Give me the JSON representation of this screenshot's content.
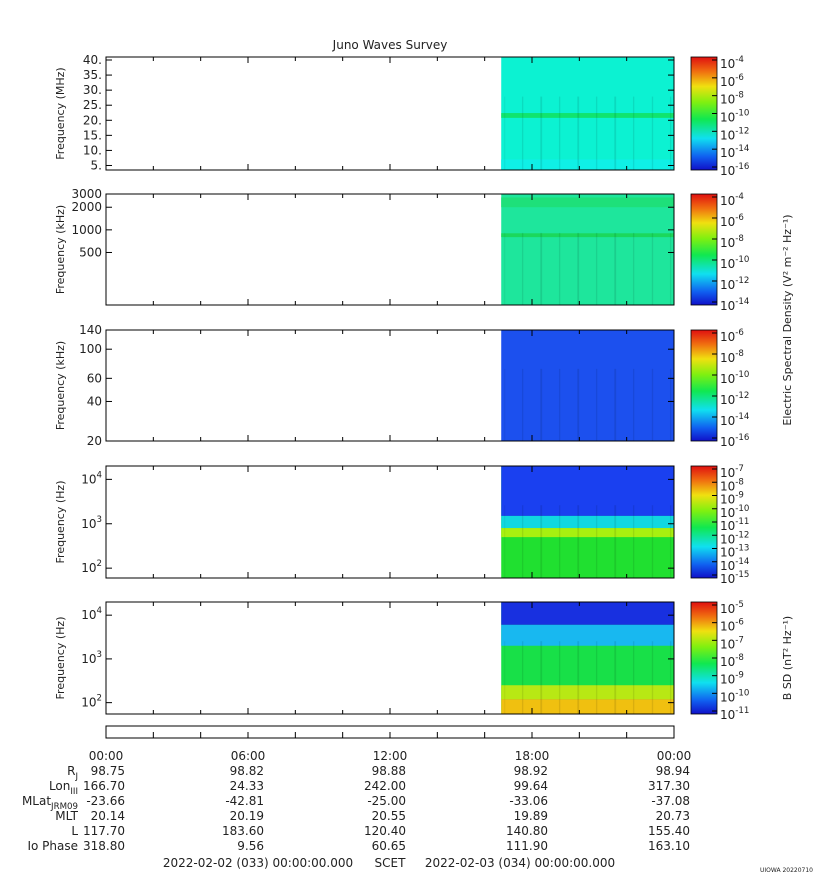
{
  "title": "Juno Waves Survey",
  "stamp": "UIOWA 20220710",
  "chart_data": [
    {
      "type": "heatmap",
      "ylabel": "Frequency (MHz)",
      "yscale": "linear",
      "ylim": [
        3.5,
        41
      ],
      "yticks": [
        {
          "label": "5.",
          "v": 5
        },
        {
          "label": "10.",
          "v": 10
        },
        {
          "label": "15.",
          "v": 15
        },
        {
          "label": "20.",
          "v": 20
        },
        {
          "label": "25.",
          "v": 25
        },
        {
          "label": "30.",
          "v": 30
        },
        {
          "label": "35.",
          "v": 35
        },
        {
          "label": "40.",
          "v": 40
        }
      ],
      "data_start_hour": 16.7,
      "base_color": "#0cf2d2",
      "bands": [
        {
          "from": 20.8,
          "to": 22.4,
          "color": "#10e46e"
        },
        {
          "from": 3.5,
          "to": 7,
          "color": "#0ff0e6"
        }
      ],
      "colorbar": {
        "unit": "",
        "ticks": [
          "-4",
          "-6",
          "-8",
          "-10",
          "-12",
          "-14",
          "-16"
        ]
      }
    },
    {
      "type": "heatmap",
      "ylabel": "Frequency (kHz)",
      "yscale": "log",
      "ylim": [
        100,
        3000
      ],
      "yticks": [
        {
          "label": "3000",
          "v": 3000
        },
        {
          "label": "2000",
          "v": 2000
        },
        {
          "label": "1000",
          "v": 1000
        },
        {
          "label": "500",
          "v": 500
        }
      ],
      "data_start_hour": 16.7,
      "base_color": "#1ee69c",
      "bands": [
        {
          "from": 2000,
          "to": 2700,
          "color": "#1ee07a"
        },
        {
          "from": 800,
          "to": 900,
          "color": "#1bd85c"
        }
      ],
      "colorbar": {
        "unit": "Electric Spectral Density (V² m⁻² Hz⁻¹)",
        "ticks": [
          "-4",
          "-6",
          "-8",
          "-10",
          "-12",
          "-14"
        ]
      }
    },
    {
      "type": "heatmap",
      "ylabel": "Frequency (kHz)",
      "yscale": "log",
      "ylim": [
        20,
        140
      ],
      "yticks": [
        {
          "label": "140",
          "v": 140
        },
        {
          "label": "100",
          "v": 100
        },
        {
          "label": "60",
          "v": 60
        },
        {
          "label": "40",
          "v": 40
        },
        {
          "label": "20",
          "v": 20
        }
      ],
      "data_start_hour": 16.7,
      "base_color": "#1c50ee",
      "bands": [],
      "colorbar": {
        "unit": "",
        "ticks": [
          "-6",
          "-8",
          "-10",
          "-12",
          "-14",
          "-16"
        ]
      }
    },
    {
      "type": "heatmap",
      "ylabel": "Frequency (Hz)",
      "yscale": "log",
      "ylim": [
        60,
        20000
      ],
      "yticks": [
        {
          "label": "10^4",
          "v": 10000
        },
        {
          "label": "10^3",
          "v": 1000
        },
        {
          "label": "10^2",
          "v": 100
        }
      ],
      "data_start_hour": 16.7,
      "base_color": "#20e030",
      "bands": [
        {
          "from": 1500,
          "to": 20000,
          "color": "#1a40f0"
        },
        {
          "from": 800,
          "to": 1500,
          "color": "#10d8e0"
        },
        {
          "from": 500,
          "to": 800,
          "color": "#a8f010"
        }
      ],
      "colorbar": {
        "unit": "",
        "ticks": [
          "-7",
          "-8",
          "-9",
          "-10",
          "-11",
          "-12",
          "-13",
          "-14",
          "-15"
        ]
      }
    },
    {
      "type": "heatmap",
      "ylabel": "Frequency (Hz)",
      "yscale": "log",
      "ylim": [
        55,
        20000
      ],
      "yticks": [
        {
          "label": "10^4",
          "v": 10000
        },
        {
          "label": "10^3",
          "v": 1000
        },
        {
          "label": "10^2",
          "v": 100
        }
      ],
      "data_start_hour": 16.7,
      "base_color": "#18e048",
      "bands": [
        {
          "from": 6000,
          "to": 20000,
          "color": "#1830e0"
        },
        {
          "from": 2000,
          "to": 6000,
          "color": "#18b8f0"
        },
        {
          "from": 120,
          "to": 250,
          "color": "#b8e814"
        },
        {
          "from": 55,
          "to": 120,
          "color": "#f0c010"
        }
      ],
      "colorbar": {
        "unit": "B SD (nT² Hz⁻¹)",
        "ticks": [
          "-5",
          "-6",
          "-7",
          "-8",
          "-9",
          "-10",
          "-11"
        ]
      }
    }
  ],
  "time_axis": {
    "ticks": [
      "00:00",
      "06:00",
      "12:00",
      "18:00",
      "00:00"
    ],
    "rows": [
      {
        "label": "R_J",
        "values": [
          "98.75",
          "98.82",
          "98.88",
          "98.92",
          "98.94"
        ]
      },
      {
        "label": "Lon_III",
        "values": [
          "166.70",
          "24.33",
          "242.00",
          "99.64",
          "317.30"
        ]
      },
      {
        "label": "MLat_JRM09",
        "values": [
          "-23.66",
          "-42.81",
          "-25.00",
          "-33.06",
          "-37.08"
        ]
      },
      {
        "label": "MLT",
        "values": [
          "20.14",
          "20.19",
          "20.55",
          "19.89",
          "20.73"
        ]
      },
      {
        "label": "L",
        "values": [
          "117.70",
          "183.60",
          "120.40",
          "140.80",
          "155.40"
        ]
      },
      {
        "label": "Io Phase",
        "values": [
          "318.80",
          "9.56",
          "60.65",
          "111.90",
          "163.10"
        ]
      }
    ],
    "start": "2022-02-02 (033) 00:00:00.000",
    "mid": "SCET",
    "end": "2022-02-03 (034) 00:00:00.000"
  }
}
